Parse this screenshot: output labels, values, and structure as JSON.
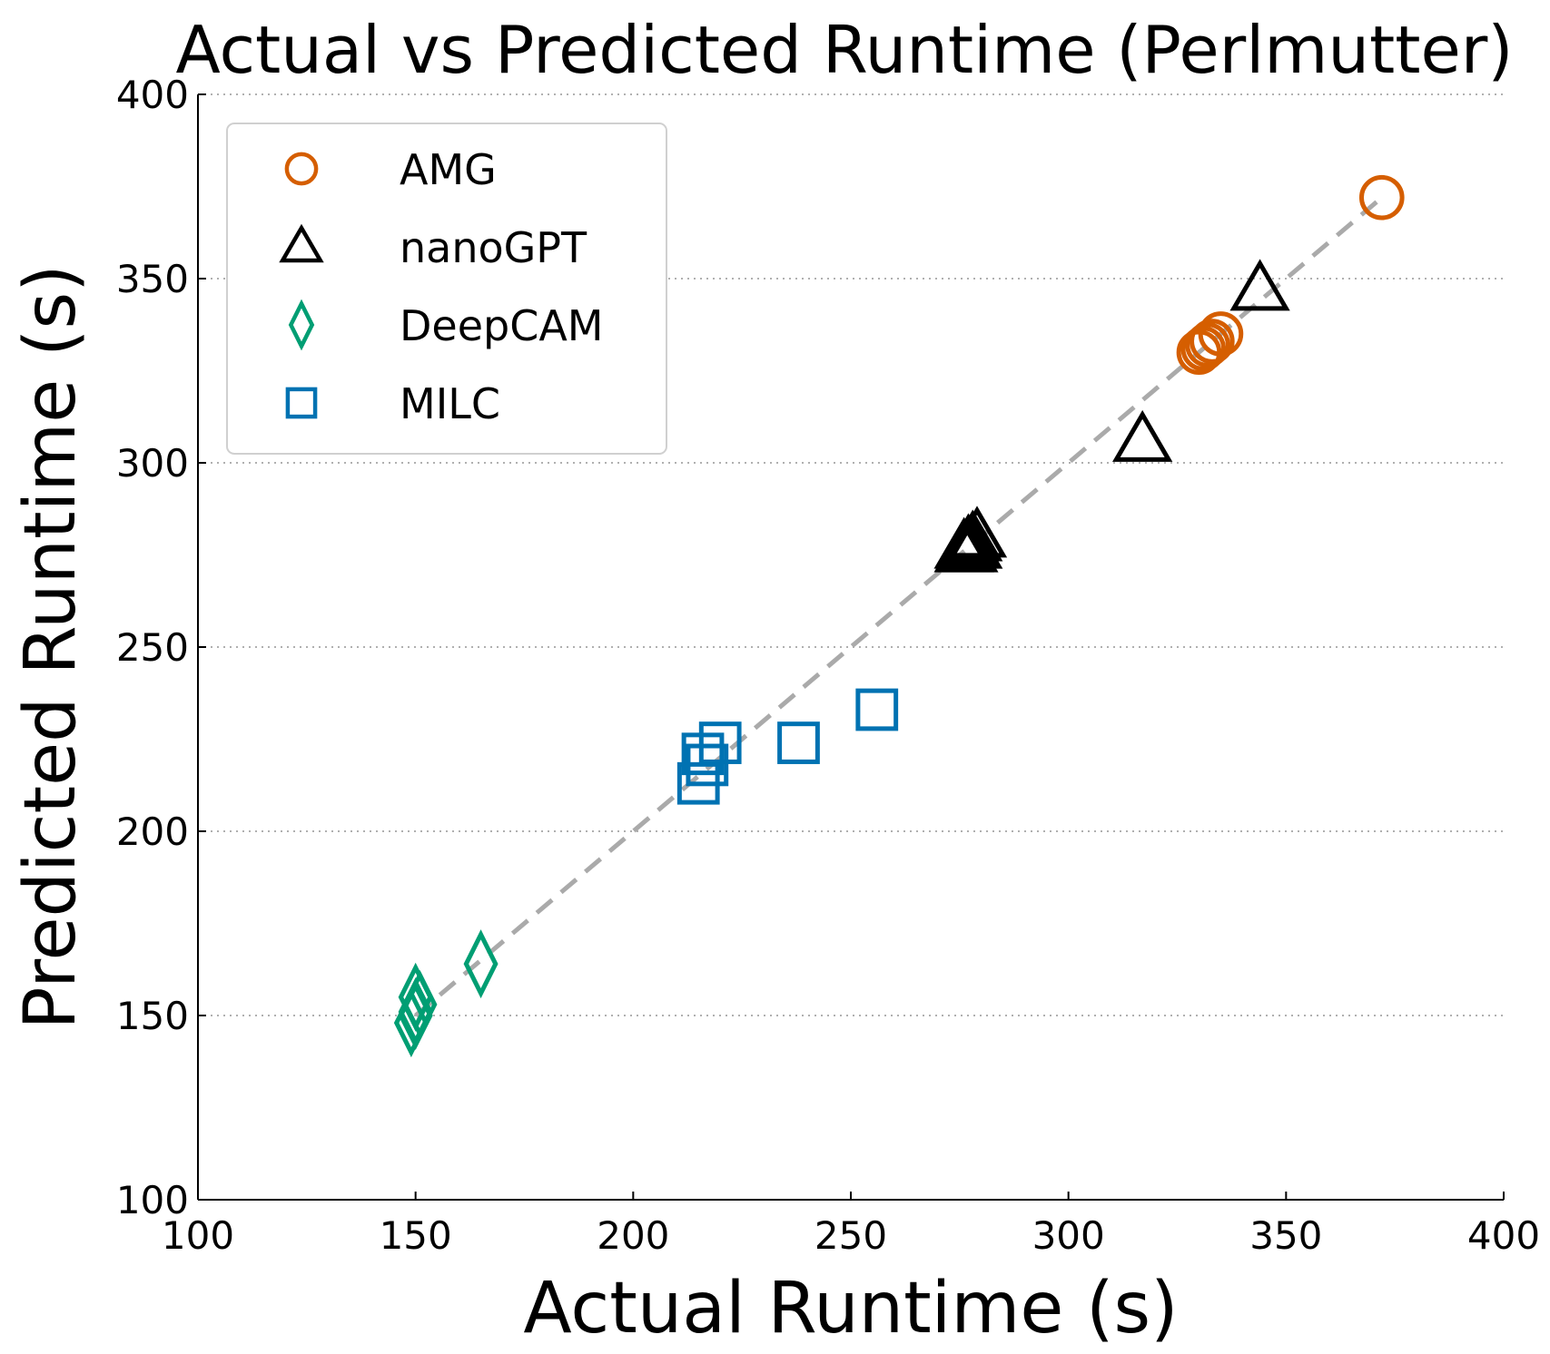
{
  "chart_data": {
    "type": "scatter",
    "title": "Actual vs Predicted Runtime (Perlmutter)",
    "xlabel": "Actual Runtime (s)",
    "ylabel": "Predicted Runtime (s)",
    "xlim": [
      100,
      400
    ],
    "ylim": [
      100,
      400
    ],
    "xticks": [
      "100",
      "150",
      "200",
      "250",
      "300",
      "350",
      "400"
    ],
    "yticks": [
      "100",
      "150",
      "200",
      "250",
      "300",
      "350",
      "400"
    ],
    "grid": "horizontal dotted",
    "legend_position": "upper-left",
    "reference_line": {
      "style": "dashed",
      "color": "#aaaaaa",
      "from": [
        150,
        150
      ],
      "to": [
        372,
        372
      ]
    },
    "series": [
      {
        "name": "AMG",
        "marker": "circle",
        "color": "#d55e00",
        "points": [
          [
            330,
            330
          ],
          [
            331,
            331
          ],
          [
            332,
            332
          ],
          [
            333,
            333
          ],
          [
            335,
            335
          ],
          [
            372,
            372
          ]
        ]
      },
      {
        "name": "nanoGPT",
        "marker": "triangle",
        "color": "#000000",
        "points": [
          [
            276,
            277
          ],
          [
            277,
            278
          ],
          [
            278,
            279
          ],
          [
            279,
            280
          ],
          [
            276,
            276
          ],
          [
            277,
            276
          ],
          [
            278,
            277
          ],
          [
            344,
            347
          ],
          [
            317,
            306
          ]
        ]
      },
      {
        "name": "DeepCAM",
        "marker": "diamond",
        "color": "#009e73",
        "points": [
          [
            149,
            148
          ],
          [
            150,
            150
          ],
          [
            150,
            151
          ],
          [
            151,
            153
          ],
          [
            150,
            155
          ],
          [
            165,
            164
          ]
        ]
      },
      {
        "name": "MILC",
        "marker": "square",
        "color": "#0072b2",
        "points": [
          [
            215,
            213
          ],
          [
            217,
            218
          ],
          [
            216,
            221
          ],
          [
            220,
            224
          ],
          [
            238,
            224
          ],
          [
            256,
            233
          ]
        ]
      }
    ]
  }
}
